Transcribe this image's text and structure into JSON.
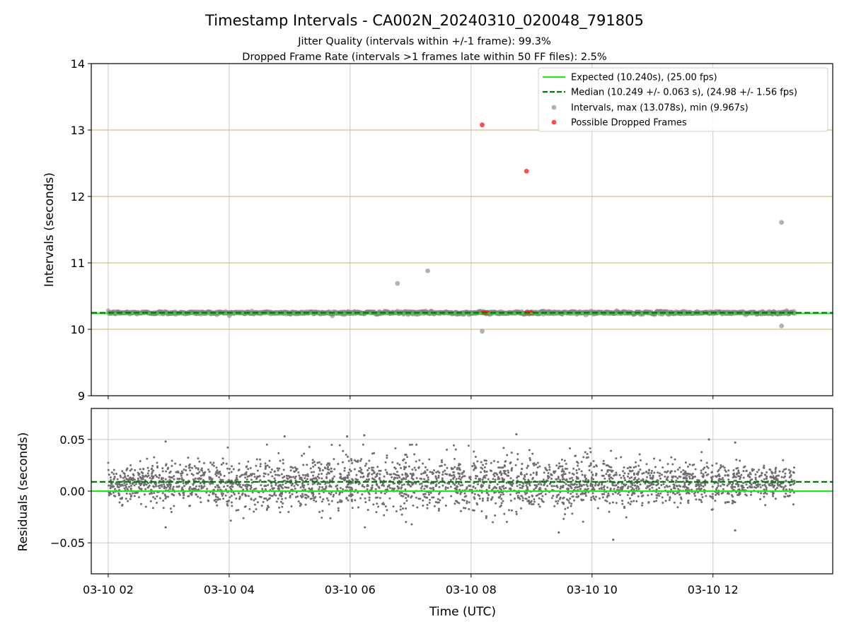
{
  "figure": {
    "title": "Timestamp Intervals - CA002N_20240310_020048_791805",
    "subtitle1": "Jitter Quality (intervals within +/-1 frame): 99.3%",
    "subtitle2": "Dropped Frame Rate (intervals >1 frames late within 50 FF files): 2.5%"
  },
  "colors": {
    "expected": "#22e622",
    "median": "#007a00",
    "intervals": "#808080",
    "dropped": "#ff2020",
    "hline": "#d4c07a",
    "grid": "#c8c8c8"
  },
  "chart_data": [
    {
      "type": "scatter",
      "ylabel": "Intervals (seconds)",
      "ylim": [
        9,
        14
      ],
      "yticks": [
        9,
        10,
        11,
        12,
        13,
        14
      ],
      "xlim_hours": [
        1.72,
        13.98
      ],
      "xticks": [
        "03-10 02",
        "03-10 04",
        "03-10 06",
        "03-10 08",
        "03-10 10",
        "03-10 12"
      ],
      "grid": true,
      "horizontal_reference_lines": [
        10,
        11,
        12,
        13
      ],
      "legend_position": "upper right",
      "legend": [
        "Expected (10.240s), (25.00 fps)",
        "Median (10.249 +/- 0.063 s), (24.98 +/- 1.56 fps)",
        "Intervals, max (13.078s), min (9.967s)",
        "Possible Dropped Frames"
      ],
      "expected_line": 10.24,
      "median_line": 10.249,
      "intervals_band": {
        "x_range_hours": [
          2.0,
          13.35
        ],
        "center": 10.249,
        "spread": 0.02
      },
      "interval_outliers": [
        {
          "x": "03-10 06:47",
          "y": 10.69
        },
        {
          "x": "03-10 07:17",
          "y": 10.88
        },
        {
          "x": "03-10 08:11",
          "y": 9.97
        },
        {
          "x": "03-10 13:08",
          "y": 11.61
        },
        {
          "x": "03-10 13:08",
          "y": 10.05
        }
      ],
      "dropped_frames": [
        {
          "x": "03-10 08:11",
          "y": 13.078
        },
        {
          "x": "03-10 08:55",
          "y": 12.38
        },
        {
          "x": "03-10 08:12",
          "y": 10.25
        },
        {
          "x": "03-10 08:13",
          "y": 10.25
        },
        {
          "x": "03-10 08:14",
          "y": 10.25
        },
        {
          "x": "03-10 08:15",
          "y": 10.25
        },
        {
          "x": "03-10 08:16",
          "y": 10.25
        },
        {
          "x": "03-10 08:55",
          "y": 10.25
        },
        {
          "x": "03-10 08:56",
          "y": 10.25
        },
        {
          "x": "03-10 08:57",
          "y": 10.25
        },
        {
          "x": "03-10 08:58",
          "y": 10.25
        },
        {
          "x": "03-10 08:59",
          "y": 10.25
        },
        {
          "x": "03-10 09:00",
          "y": 10.25
        }
      ]
    },
    {
      "type": "scatter",
      "xlabel": "Time (UTC)",
      "ylabel": "Residuals (seconds)",
      "ylim": [
        -0.08,
        0.08
      ],
      "yticks": [
        -0.05,
        0.0,
        0.05
      ],
      "ytick_labels": [
        "−0.05",
        "0.00",
        "0.05"
      ],
      "xlim_hours": [
        1.72,
        13.98
      ],
      "xticks": [
        "03-10 02",
        "03-10 04",
        "03-10 06",
        "03-10 08",
        "03-10 10",
        "03-10 12"
      ],
      "grid": true,
      "expected_line": 0.0,
      "median_line": 0.009,
      "residuals_band": {
        "x_range_hours": [
          2.0,
          13.35
        ],
        "center": 0.008,
        "spread": 0.013
      },
      "residual_outliers": [
        {
          "x": "03-10 02:57",
          "y": 0.048
        },
        {
          "x": "03-10 02:57",
          "y": -0.035
        },
        {
          "x": "03-10 04:55",
          "y": 0.053
        },
        {
          "x": "03-10 05:57",
          "y": 0.053
        },
        {
          "x": "03-10 06:14",
          "y": 0.054
        },
        {
          "x": "03-10 08:45",
          "y": 0.055
        },
        {
          "x": "03-10 09:27",
          "y": -0.04
        },
        {
          "x": "03-10 10:21",
          "y": -0.047
        },
        {
          "x": "03-10 11:56",
          "y": 0.05
        },
        {
          "x": "03-10 12:22",
          "y": 0.047
        },
        {
          "x": "03-10 12:22",
          "y": -0.038
        }
      ]
    }
  ]
}
